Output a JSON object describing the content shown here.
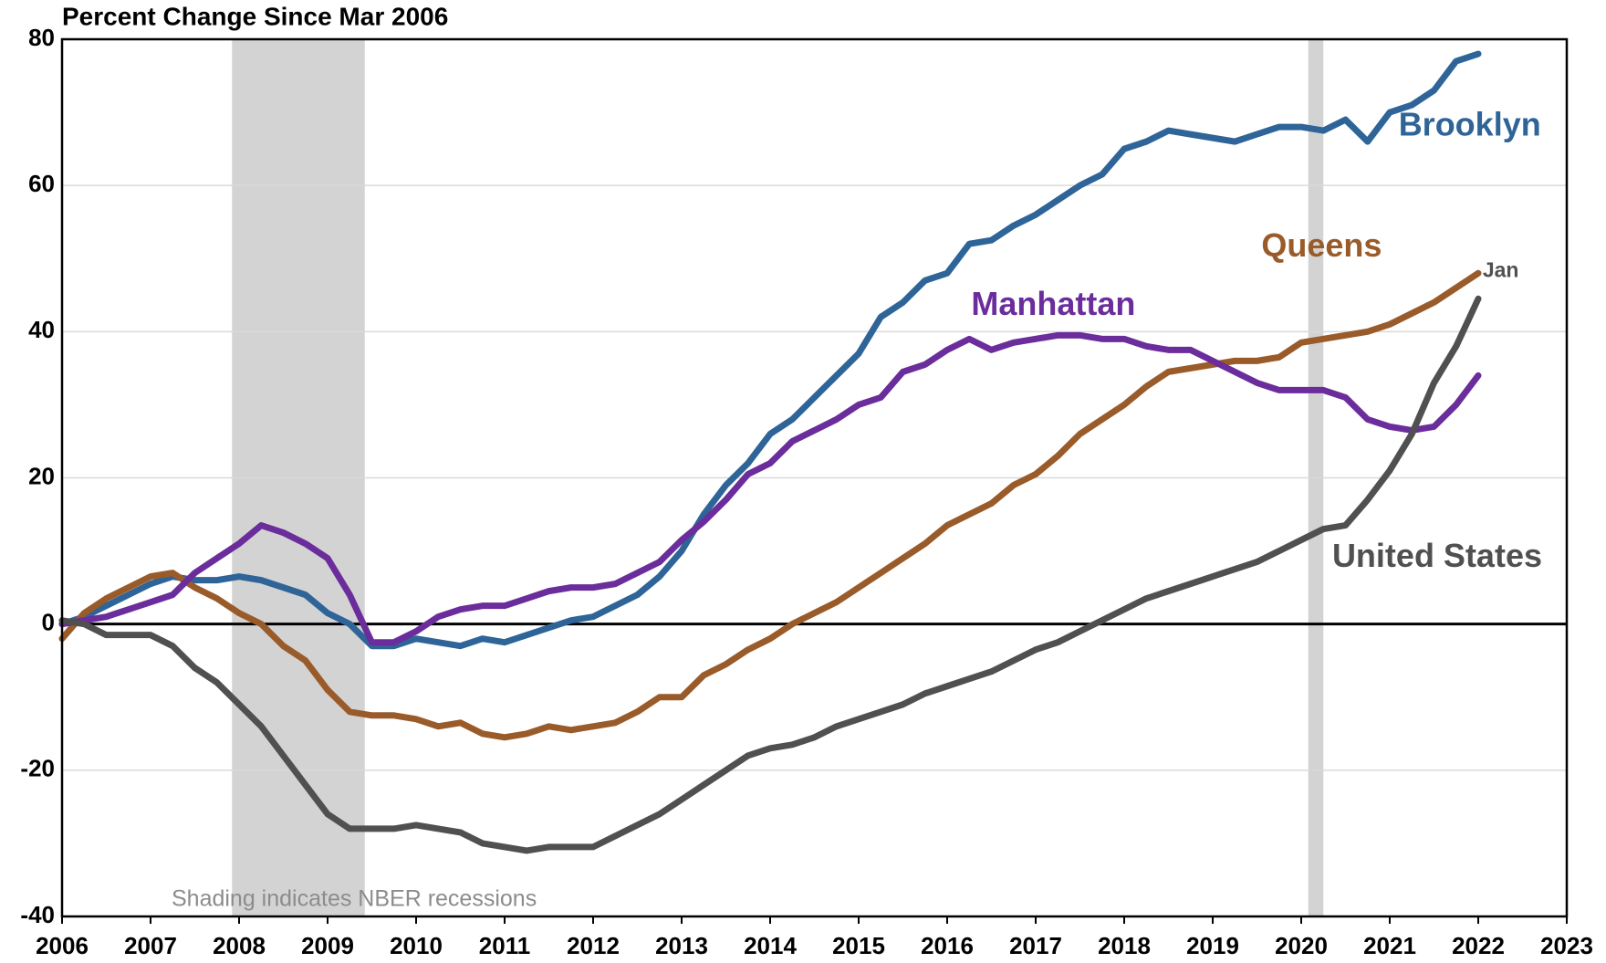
{
  "chart_data": {
    "type": "line",
    "title": "Percent Change Since Mar 2006",
    "annotations": [
      "Shading indicates NBER recessions",
      "Jan"
    ],
    "recessions": [
      [
        2007.92,
        2009.42
      ],
      [
        2020.08,
        2020.25
      ]
    ],
    "xlim": [
      2006,
      2023
    ],
    "xticks": [
      2006,
      2007,
      2008,
      2009,
      2010,
      2011,
      2012,
      2013,
      2014,
      2015,
      2016,
      2017,
      2018,
      2019,
      2020,
      2021,
      2022,
      2023
    ],
    "ylim": [
      -40,
      80
    ],
    "yticks": [
      -40,
      -20,
      0,
      20,
      40,
      60,
      80
    ],
    "grid": true,
    "x": [
      2006,
      2006.25,
      2006.5,
      2006.75,
      2007,
      2007.25,
      2007.5,
      2007.75,
      2008,
      2008.25,
      2008.5,
      2008.75,
      2009,
      2009.25,
      2009.5,
      2009.75,
      2010,
      2010.25,
      2010.5,
      2010.75,
      2011,
      2011.25,
      2011.5,
      2011.75,
      2012,
      2012.25,
      2012.5,
      2012.75,
      2013,
      2013.25,
      2013.5,
      2013.75,
      2014,
      2014.25,
      2014.5,
      2014.75,
      2015,
      2015.25,
      2015.5,
      2015.75,
      2016,
      2016.25,
      2016.5,
      2016.75,
      2017,
      2017.25,
      2017.5,
      2017.75,
      2018,
      2018.25,
      2018.5,
      2018.75,
      2019,
      2019.25,
      2019.5,
      2019.75,
      2020,
      2020.25,
      2020.5,
      2020.75,
      2021,
      2021.25,
      2021.5,
      2021.75,
      2022
    ],
    "series": [
      {
        "name": "Brooklyn",
        "color": "#2e6497",
        "values": [
          0,
          1,
          2.5,
          4,
          5.5,
          6.5,
          6,
          6,
          6.5,
          6,
          5,
          4,
          1.5,
          0,
          -3,
          -3,
          -2,
          -2.5,
          -3,
          -2,
          -2.5,
          -1.5,
          -0.5,
          0.5,
          1,
          2.5,
          4,
          6.5,
          10,
          15,
          19,
          22,
          26,
          28,
          31,
          34,
          37,
          42,
          44,
          47,
          48,
          52,
          52.5,
          54.5,
          56,
          58,
          60,
          61.5,
          65,
          66,
          67.5,
          67,
          66.5,
          66,
          67,
          68,
          68,
          67.5,
          69,
          66,
          70,
          71,
          73,
          77,
          78
        ]
      },
      {
        "name": "Queens",
        "color": "#9a5b2a",
        "values": [
          -2,
          1.5,
          3.5,
          5,
          6.5,
          7,
          5,
          3.5,
          1.5,
          0,
          -3,
          -5,
          -9,
          -12,
          -12.5,
          -12.5,
          -13,
          -14,
          -13.5,
          -15,
          -15.5,
          -15,
          -14,
          -14.5,
          -14,
          -13.5,
          -12,
          -10,
          -10,
          -7,
          -5.5,
          -3.5,
          -2,
          0,
          1.5,
          3,
          5,
          7,
          9,
          11,
          13.5,
          15,
          16.5,
          19,
          20.5,
          23,
          26,
          28,
          30,
          32.5,
          34.5,
          35,
          35.5,
          36,
          36,
          36.5,
          38.5,
          39,
          39.5,
          40,
          41,
          42.5,
          44,
          46,
          48
        ]
      },
      {
        "name": "Manhattan",
        "color": "#6a2d9b",
        "values": [
          0,
          0.5,
          1,
          2,
          3,
          4,
          7,
          9,
          11,
          13.5,
          12.5,
          11,
          9,
          4,
          -2.5,
          -2.5,
          -1,
          1,
          2,
          2.5,
          2.5,
          3.5,
          4.5,
          5,
          5,
          5.5,
          7,
          8.5,
          11.5,
          14,
          17,
          20.5,
          22,
          25,
          26.5,
          28,
          30,
          31,
          34.5,
          35.5,
          37.5,
          39,
          37.5,
          38.5,
          39,
          39.5,
          39.5,
          39,
          39,
          38,
          37.5,
          37.5,
          36,
          34.5,
          33,
          32,
          32,
          32,
          31,
          28,
          27,
          26.5,
          27,
          30,
          34
        ]
      },
      {
        "name": "United States",
        "color": "#505050",
        "values": [
          0.5,
          0,
          -1.5,
          -1.5,
          -1.5,
          -3,
          -6,
          -8,
          -11,
          -14,
          -18,
          -22,
          -26,
          -28,
          -28,
          -28,
          -27.5,
          -28,
          -28.5,
          -30,
          -30.5,
          -31,
          -30.5,
          -30.5,
          -30.5,
          -29,
          -27.5,
          -26,
          -24,
          -22,
          -20,
          -18,
          -17,
          -16.5,
          -15.5,
          -14,
          -13,
          -12,
          -11,
          -9.5,
          -8.5,
          -7.5,
          -6.5,
          -5,
          -3.5,
          -2.5,
          -1,
          0.5,
          2,
          3.5,
          4.5,
          5.5,
          6.5,
          7.5,
          8.5,
          10,
          11.5,
          13,
          13.5,
          17,
          21,
          26,
          33,
          38,
          44.5
        ]
      }
    ]
  }
}
